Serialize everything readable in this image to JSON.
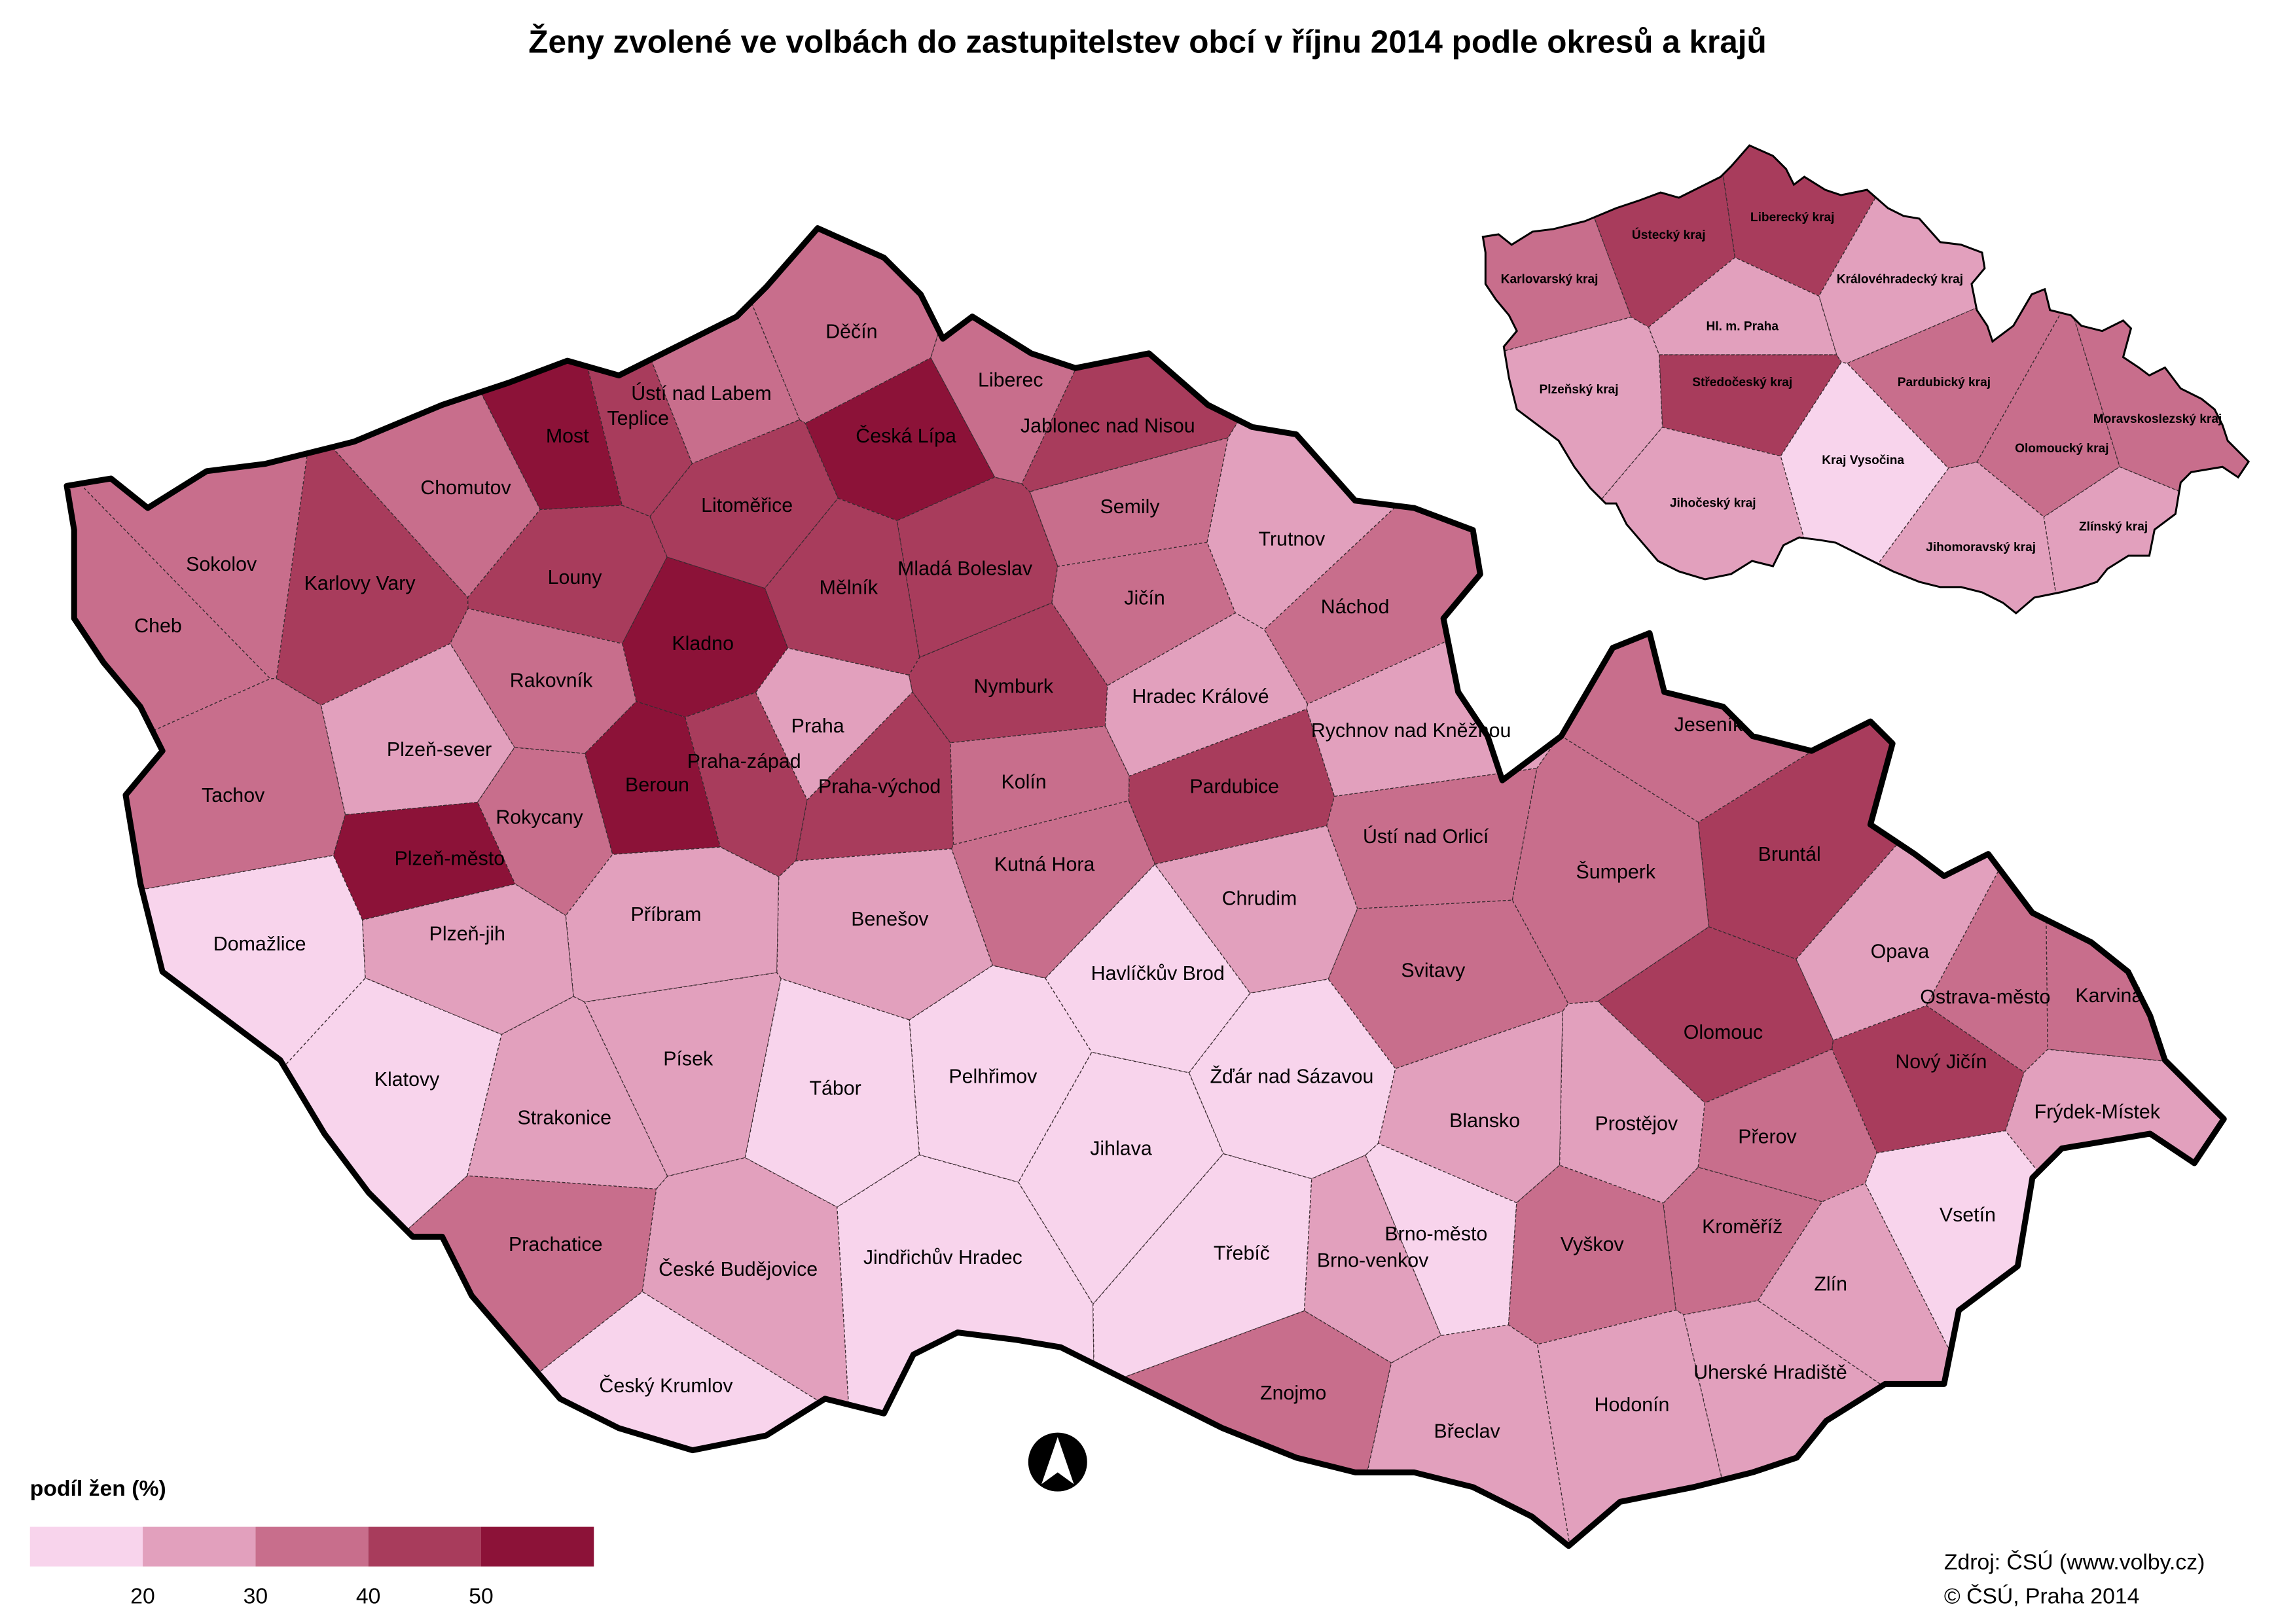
{
  "title": "Ženy zvolené ve volbách do zastupitelstev obcí v říjnu 2014 podle okresů a krajů",
  "districts": [
    {
      "name": "Praha",
      "color": "#e2a0bd"
    },
    {
      "name": "Děčín",
      "color": "#c86e8c"
    },
    {
      "name": "Liberec",
      "color": "#c86e8c"
    },
    {
      "name": "Česká Lípa",
      "color": "#8c1238"
    },
    {
      "name": "Jablonec nad Nisou",
      "color": "#a83c5c"
    },
    {
      "name": "Semily",
      "color": "#c86e8c"
    },
    {
      "name": "Ústí nad Labem",
      "color": "#c86e8c"
    },
    {
      "name": "Teplice",
      "color": "#a83c5c"
    },
    {
      "name": "Most",
      "color": "#8c1238"
    },
    {
      "name": "Chomutov",
      "color": "#c86e8c"
    },
    {
      "name": "Litoměřice",
      "color": "#a83c5c"
    },
    {
      "name": "Louny",
      "color": "#a83c5c"
    },
    {
      "name": "Karlovy Vary",
      "color": "#a83c5c"
    },
    {
      "name": "Sokolov",
      "color": "#c86e8c"
    },
    {
      "name": "Cheb",
      "color": "#c86e8c"
    },
    {
      "name": "Mělník",
      "color": "#a83c5c"
    },
    {
      "name": "Mladá Boleslav",
      "color": "#a83c5c"
    },
    {
      "name": "Jičín",
      "color": "#c86e8c"
    },
    {
      "name": "Trutnov",
      "color": "#e2a0bd"
    },
    {
      "name": "Náchod",
      "color": "#c86e8c"
    },
    {
      "name": "Kladno",
      "color": "#8c1238"
    },
    {
      "name": "Rakovník",
      "color": "#c86e8c"
    },
    {
      "name": "Nymburk",
      "color": "#a83c5c"
    },
    {
      "name": "Hradec Králové",
      "color": "#e2a0bd"
    },
    {
      "name": "Rychnov nad Kněžnou",
      "color": "#e2a0bd"
    },
    {
      "name": "Tachov",
      "color": "#c86e8c"
    },
    {
      "name": "Plzeň-sever",
      "color": "#e2a0bd"
    },
    {
      "name": "Beroun",
      "color": "#8c1238"
    },
    {
      "name": "Praha-západ",
      "color": "#a83c5c"
    },
    {
      "name": "Praha-východ",
      "color": "#a83c5c"
    },
    {
      "name": "Kolín",
      "color": "#c86e8c"
    },
    {
      "name": "Pardubice",
      "color": "#a83c5c"
    },
    {
      "name": "Rokycany",
      "color": "#c86e8c"
    },
    {
      "name": "Plzeň-město",
      "color": "#8c1238"
    },
    {
      "name": "Kutná Hora",
      "color": "#c86e8c"
    },
    {
      "name": "Ústí nad Orlicí",
      "color": "#c86e8c"
    },
    {
      "name": "Chrudim",
      "color": "#e2a0bd"
    },
    {
      "name": "Jeseník",
      "color": "#c86e8c"
    },
    {
      "name": "Šumperk",
      "color": "#c86e8c"
    },
    {
      "name": "Bruntál",
      "color": "#a83c5c"
    },
    {
      "name": "Domažlice",
      "color": "#f8d4ec"
    },
    {
      "name": "Plzeň-jih",
      "color": "#e2a0bd"
    },
    {
      "name": "Příbram",
      "color": "#e2a0bd"
    },
    {
      "name": "Benešov",
      "color": "#e2a0bd"
    },
    {
      "name": "Havlíčkův Brod",
      "color": "#f8d4ec"
    },
    {
      "name": "Svitavy",
      "color": "#c86e8c"
    },
    {
      "name": "Opava",
      "color": "#e2a0bd"
    },
    {
      "name": "Ostrava-město",
      "color": "#c86e8c"
    },
    {
      "name": "Karviná",
      "color": "#c86e8c"
    },
    {
      "name": "Olomouc",
      "color": "#a83c5c"
    },
    {
      "name": "Nový Jičín",
      "color": "#a83c5c"
    },
    {
      "name": "Frýdek-Místek",
      "color": "#e2a0bd"
    },
    {
      "name": "Klatovy",
      "color": "#f8d4ec"
    },
    {
      "name": "Strakonice",
      "color": "#e2a0bd"
    },
    {
      "name": "Písek",
      "color": "#e2a0bd"
    },
    {
      "name": "Tábor",
      "color": "#f8d4ec"
    },
    {
      "name": "Pelhřimov",
      "color": "#f8d4ec"
    },
    {
      "name": "Žďár nad Sázavou",
      "color": "#f8d4ec"
    },
    {
      "name": "Jihlava",
      "color": "#f8d4ec"
    },
    {
      "name": "Blansko",
      "color": "#e2a0bd"
    },
    {
      "name": "Prostějov",
      "color": "#e2a0bd"
    },
    {
      "name": "Přerov",
      "color": "#c86e8c"
    },
    {
      "name": "Vsetín",
      "color": "#f8d4ec"
    },
    {
      "name": "Prachatice",
      "color": "#c86e8c"
    },
    {
      "name": "České Budějovice",
      "color": "#e2a0bd"
    },
    {
      "name": "Jindřichův Hradec",
      "color": "#f8d4ec"
    },
    {
      "name": "Třebíč",
      "color": "#f8d4ec"
    },
    {
      "name": "Brno-město",
      "color": "#f8d4ec"
    },
    {
      "name": "Brno-venkov",
      "color": "#e2a0bd"
    },
    {
      "name": "Vyškov",
      "color": "#c86e8c"
    },
    {
      "name": "Kroměříž",
      "color": "#c86e8c"
    },
    {
      "name": "Zlín",
      "color": "#e2a0bd"
    },
    {
      "name": "Český Krumlov",
      "color": "#f8d4ec"
    },
    {
      "name": "Znojmo",
      "color": "#c86e8c"
    },
    {
      "name": "Břeclav",
      "color": "#e2a0bd"
    },
    {
      "name": "Hodonín",
      "color": "#e2a0bd"
    },
    {
      "name": "Uherské Hradiště",
      "color": "#e2a0bd"
    }
  ],
  "regions": [
    {
      "name": "Karlovarský kraj",
      "color": "#c86e8c"
    },
    {
      "name": "Ústecký kraj",
      "color": "#a83c5c"
    },
    {
      "name": "Liberecký kraj",
      "color": "#a83c5c"
    },
    {
      "name": "Královéhradecký kraj",
      "color": "#e2a0bd"
    },
    {
      "name": "Hl. m. Praha",
      "color": "#e2a0bd"
    },
    {
      "name": "Středočeský kraj",
      "color": "#a83c5c"
    },
    {
      "name": "Plzeňský kraj",
      "color": "#e2a0bd"
    },
    {
      "name": "Pardubický kraj",
      "color": "#c86e8c"
    },
    {
      "name": "Moravskoslezský kraj",
      "color": "#c86e8c"
    },
    {
      "name": "Olomoucký kraj",
      "color": "#c86e8c"
    },
    {
      "name": "Kraj Vysočina",
      "color": "#f8d4ec"
    },
    {
      "name": "Jihočeský kraj",
      "color": "#e2a0bd"
    },
    {
      "name": "Jihomoravský kraj",
      "color": "#e2a0bd"
    },
    {
      "name": "Zlínský kraj",
      "color": "#e2a0bd"
    }
  ],
  "legend": {
    "title": "podíl žen (%)",
    "breaks": [
      20,
      30,
      40,
      50
    ],
    "colors": [
      "#f8d4ec",
      "#e2a0bd",
      "#c86e8c",
      "#a83c5c",
      "#8c1238"
    ]
  },
  "source": "Zdroj: ČSÚ (www.volby.cz)",
  "copyright": "© ČSÚ, Praha 2014"
}
